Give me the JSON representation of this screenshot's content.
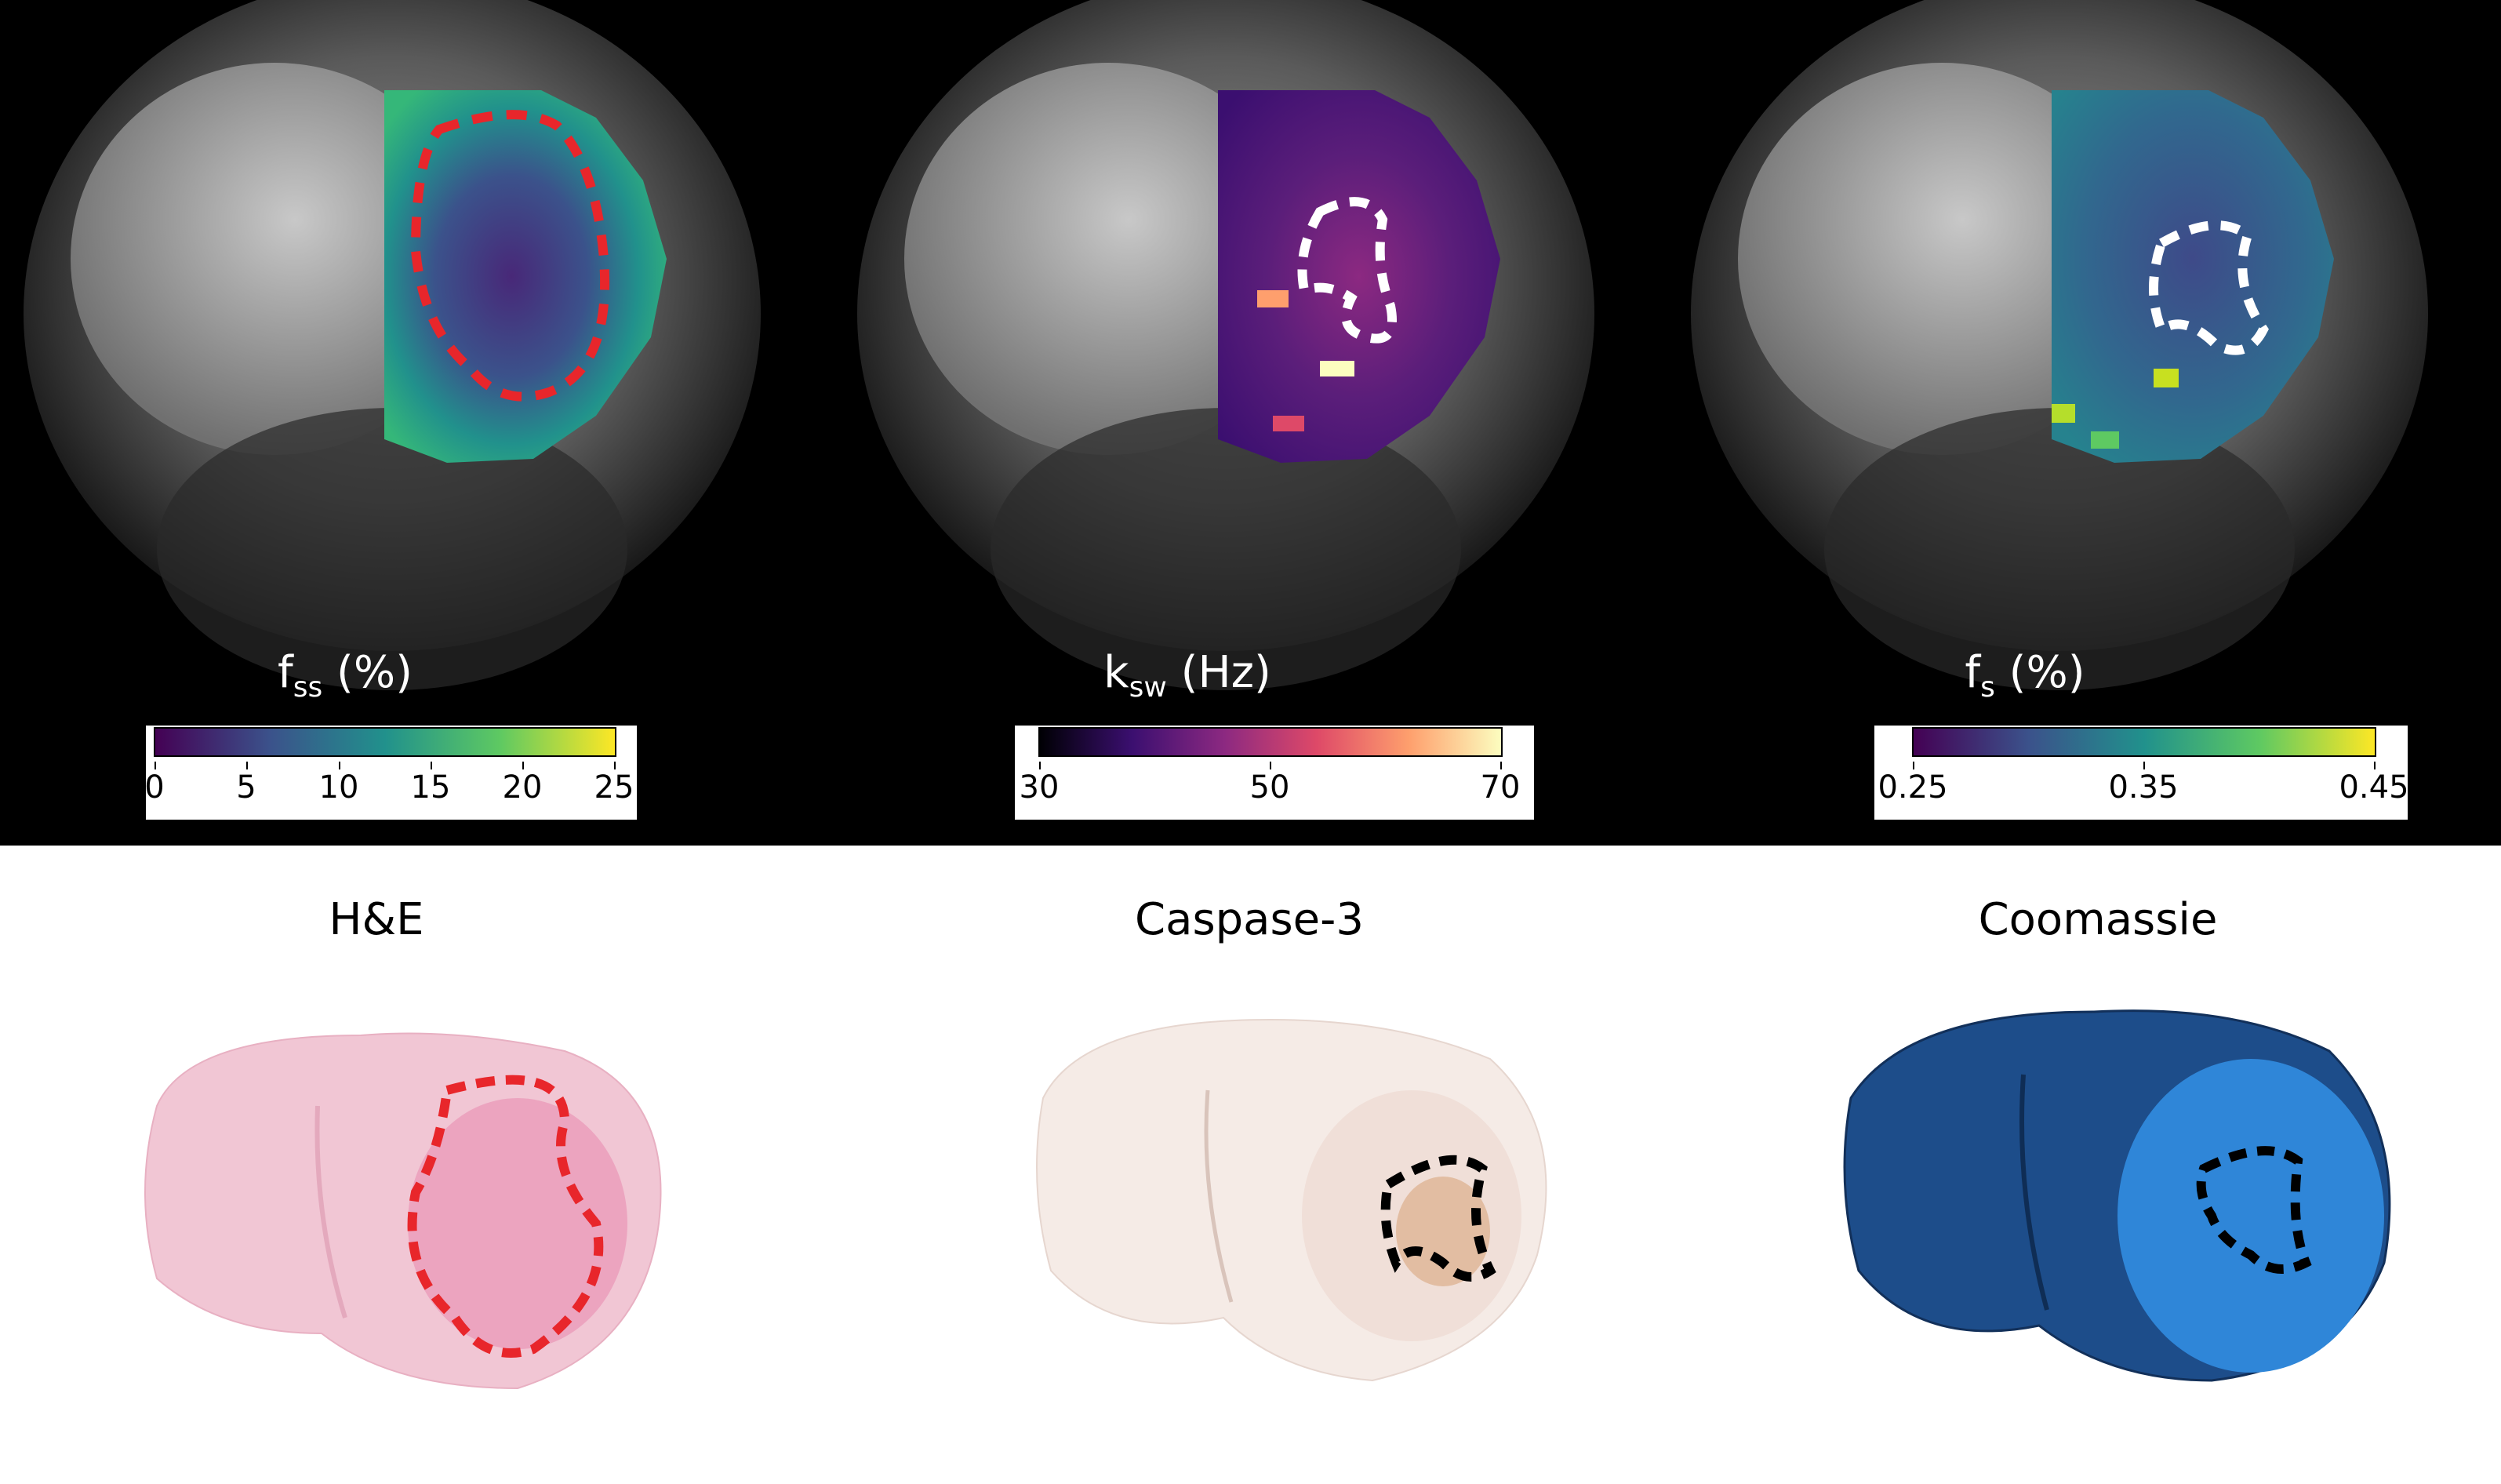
{
  "mri_panels": [
    {
      "label_main": "f",
      "label_sub": "ss",
      "label_unit": " (%)",
      "colormap": "viridis",
      "ticks": [
        "0",
        "5",
        "10",
        "15",
        "20",
        "25"
      ],
      "tick_values": [
        0,
        5,
        10,
        15,
        20,
        25
      ],
      "range": [
        0,
        25
      ],
      "roi_color": "#e8262b"
    },
    {
      "label_main": "k",
      "label_sub": "sw",
      "label_unit": " (Hz)",
      "colormap": "magma",
      "ticks": [
        "30",
        "50",
        "70"
      ],
      "tick_values": [
        30,
        50,
        70
      ],
      "range": [
        30,
        70
      ],
      "roi_color": "#ffffff"
    },
    {
      "label_main": "f",
      "label_sub": "s",
      "label_unit": " (%)",
      "colormap": "viridis",
      "ticks": [
        "0.25",
        "0.35",
        "0.45"
      ],
      "tick_values": [
        0.25,
        0.35,
        0.45
      ],
      "range": [
        0.25,
        0.45
      ],
      "roi_color": "#ffffff"
    }
  ],
  "histology": [
    {
      "title": "H&E",
      "stain_color": "#f2c9d6",
      "roi_color": "#e8262b"
    },
    {
      "title": "Caspase-3",
      "stain_color": "#f3e6e0",
      "roi_color": "#000000"
    },
    {
      "title": "Coomassie",
      "stain_color": "#1f5fa8",
      "roi_color": "#000000"
    }
  ],
  "colors": {
    "viridis": [
      "#440154",
      "#3b528b",
      "#21918c",
      "#5ec962",
      "#fde725"
    ],
    "magma": [
      "#000004",
      "#3b0f70",
      "#8c2981",
      "#de4968",
      "#fe9f6d",
      "#fcfdbf"
    ]
  }
}
